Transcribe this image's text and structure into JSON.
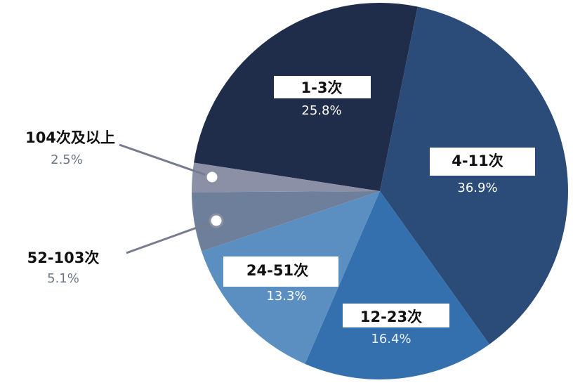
{
  "chart_data": {
    "type": "pie",
    "categories": [
      "1-3次",
      "4-11次",
      "12-23次",
      "24-51次",
      "52-103次",
      "104次及以上"
    ],
    "values": [
      25.8,
      36.9,
      16.4,
      13.3,
      5.1,
      2.5
    ],
    "value_labels": [
      "25.8%",
      "36.9%",
      "16.4%",
      "13.3%",
      "5.1%",
      "2.5%"
    ],
    "colors": [
      "#1f2c4a",
      "#2b4c79",
      "#3470ad",
      "#5b8fc1",
      "#6d7f9a",
      "#8c90a6"
    ]
  }
}
